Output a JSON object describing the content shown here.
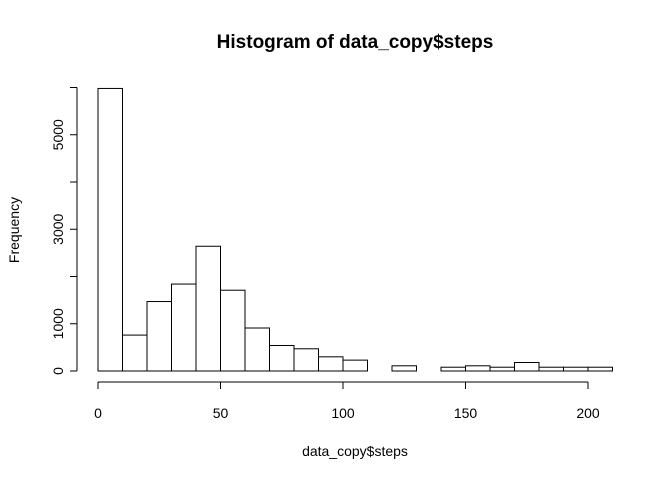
{
  "chart_data": {
    "type": "bar",
    "title": "Histogram of data_copy$steps",
    "xlabel": "data_copy$steps",
    "ylabel": "Frequency",
    "bin_width": 10,
    "bin_edges_start": 0,
    "values": [
      5980,
      760,
      1470,
      1840,
      2640,
      1710,
      910,
      540,
      470,
      300,
      230,
      0,
      110,
      0,
      80,
      110,
      80,
      180,
      80,
      80,
      80
    ],
    "xlim": [
      0,
      210
    ],
    "ylim": [
      0,
      6000
    ],
    "x_ticks": [
      0,
      50,
      100,
      150,
      200
    ],
    "x_tick_labels": [
      "0",
      "50",
      "100",
      "150",
      "200"
    ],
    "y_ticks": [
      0,
      1000,
      3000,
      5000
    ],
    "y_tick_labels": [
      "0",
      "1000",
      "3000",
      "5000"
    ],
    "y_minor_ticks": [
      2000,
      4000,
      6000
    ],
    "grid": false,
    "legend": "none"
  }
}
